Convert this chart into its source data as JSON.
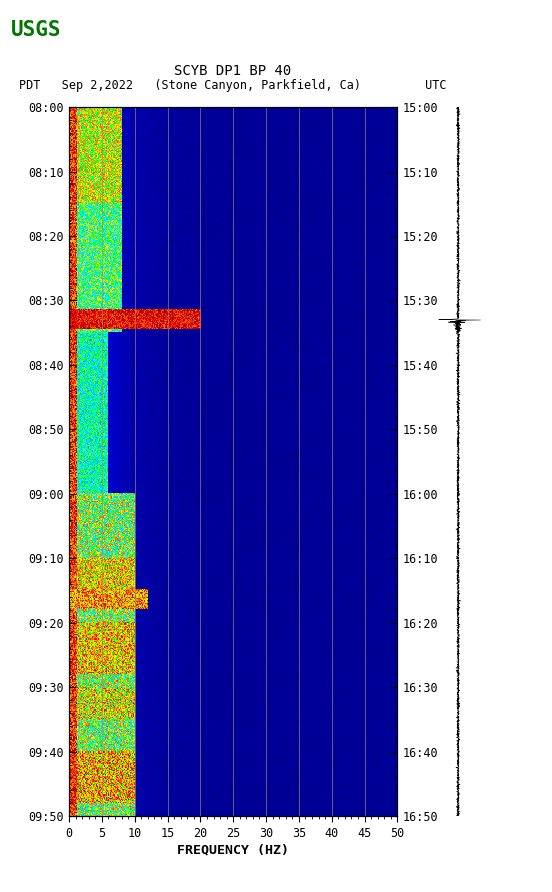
{
  "title_line1": "SCYB DP1 BP 40",
  "title_line2": "PDT   Sep 2,2022   (Stone Canyon, Parkfield, Ca)         UTC",
  "xlabel": "FREQUENCY (HZ)",
  "freq_min": 0,
  "freq_max": 50,
  "freq_ticks": [
    0,
    5,
    10,
    15,
    20,
    25,
    30,
    35,
    40,
    45,
    50
  ],
  "left_time_labels": [
    "08:00",
    "08:10",
    "08:20",
    "08:30",
    "08:40",
    "08:50",
    "09:00",
    "09:10",
    "09:20",
    "09:30",
    "09:40",
    "09:50"
  ],
  "right_time_labels": [
    "15:00",
    "15:10",
    "15:20",
    "15:30",
    "15:40",
    "15:50",
    "16:00",
    "16:10",
    "16:20",
    "16:30",
    "16:40",
    "16:50"
  ],
  "bg_color": "#ffffff",
  "usgs_green": "#007700",
  "grid_color": "#9B8B6B",
  "fig_width": 5.52,
  "fig_height": 8.92,
  "n_time": 660,
  "n_freq": 500,
  "total_minutes": 110
}
